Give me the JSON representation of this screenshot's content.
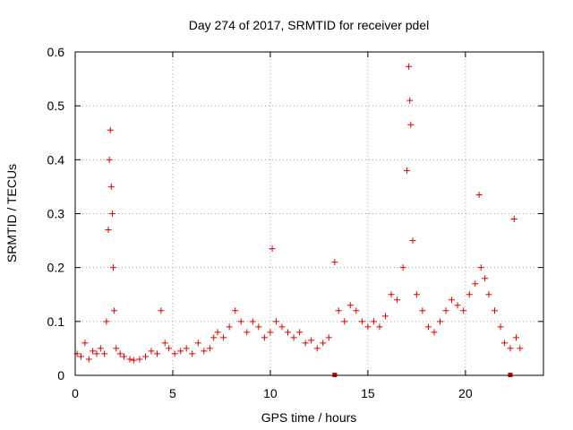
{
  "chart_data": {
    "type": "scatter",
    "title": "Day 274 of 2017, SRMTID for receiver pdel",
    "xlabel": "GPS time / hours",
    "ylabel": "SRMTID / TECUs",
    "xlim": [
      0,
      24
    ],
    "ylim": [
      0,
      0.6
    ],
    "xticks": [
      0,
      5,
      10,
      15,
      20
    ],
    "yticks": [
      0,
      0.1,
      0.2,
      0.3,
      0.4,
      0.5,
      0.6
    ],
    "xtick_labels": [
      "0",
      "5",
      "10",
      "15",
      "20"
    ],
    "ytick_labels": [
      "0",
      "0.1",
      "0.2",
      "0.3",
      "0.4",
      "0.5",
      "0.6"
    ],
    "grid": true,
    "marker": "+",
    "color": "#dd0000",
    "series": [
      {
        "name": "SRMTID",
        "x": [
          0.1,
          0.3,
          0.5,
          0.7,
          0.9,
          1.1,
          1.3,
          1.5,
          1.6,
          1.7,
          1.75,
          1.8,
          1.85,
          1.9,
          1.95,
          2.0,
          2.1,
          2.3,
          2.5,
          2.8,
          3.0,
          3.3,
          3.6,
          3.9,
          4.2,
          4.4,
          4.6,
          4.8,
          5.1,
          5.4,
          5.7,
          6.0,
          6.3,
          6.6,
          6.9,
          7.1,
          7.3,
          7.6,
          7.9,
          8.2,
          8.5,
          8.8,
          9.1,
          9.4,
          9.7,
          10.0,
          10.1,
          10.3,
          10.6,
          10.9,
          11.2,
          11.5,
          11.8,
          12.1,
          12.4,
          12.7,
          13.0,
          13.3,
          13.5,
          13.8,
          14.1,
          14.4,
          14.7,
          15.0,
          15.3,
          15.6,
          15.9,
          16.2,
          16.5,
          16.8,
          17.0,
          17.1,
          17.15,
          17.2,
          17.3,
          17.5,
          17.8,
          18.1,
          18.4,
          18.7,
          19.0,
          19.3,
          19.6,
          19.9,
          20.2,
          20.5,
          20.7,
          20.8,
          21.0,
          21.2,
          21.5,
          21.8,
          22.0,
          22.3,
          22.5,
          22.6,
          22.8
        ],
        "y": [
          0.04,
          0.035,
          0.06,
          0.03,
          0.045,
          0.04,
          0.05,
          0.04,
          0.1,
          0.27,
          0.4,
          0.455,
          0.35,
          0.3,
          0.2,
          0.12,
          0.05,
          0.04,
          0.035,
          0.03,
          0.028,
          0.03,
          0.035,
          0.045,
          0.04,
          0.12,
          0.06,
          0.05,
          0.04,
          0.045,
          0.05,
          0.04,
          0.06,
          0.045,
          0.05,
          0.07,
          0.08,
          0.07,
          0.09,
          0.12,
          0.1,
          0.08,
          0.1,
          0.09,
          0.07,
          0.08,
          0.235,
          0.1,
          0.09,
          0.08,
          0.07,
          0.08,
          0.06,
          0.065,
          0.05,
          0.06,
          0.07,
          0.21,
          0.12,
          0.1,
          0.13,
          0.12,
          0.1,
          0.09,
          0.1,
          0.09,
          0.11,
          0.15,
          0.14,
          0.2,
          0.38,
          0.573,
          0.51,
          0.465,
          0.25,
          0.15,
          0.12,
          0.09,
          0.08,
          0.1,
          0.12,
          0.14,
          0.13,
          0.12,
          0.15,
          0.17,
          0.335,
          0.2,
          0.18,
          0.15,
          0.12,
          0.09,
          0.06,
          0.05,
          0.29,
          0.07,
          0.05
        ]
      }
    ],
    "gap_markers_x": [
      13.3,
      22.3
    ]
  }
}
